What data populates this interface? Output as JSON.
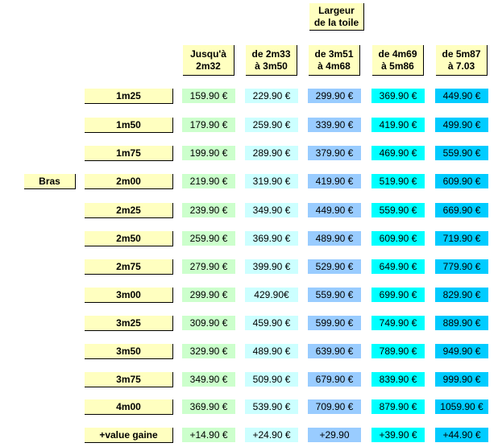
{
  "top_header": "Largeur\nde la toile",
  "columns": [
    {
      "label": "Jusqu'à\n2m32",
      "color": "#ccffcc"
    },
    {
      "label": "de 2m33\nà 3m50",
      "color": "#ccffff"
    },
    {
      "label": "de 3m51\nà 4m68",
      "color": "#99ccff"
    },
    {
      "label": "de 4m69\nà 5m86",
      "color": "#00ffff"
    },
    {
      "label": "de 5m87\nà 7.03",
      "color": "#00ccff"
    }
  ],
  "group_label": "Bras",
  "rows": [
    {
      "label": "1m25",
      "values": [
        "159.90 €",
        "229.90 €",
        "299.90 €",
        "369.90 €",
        "449.90 €"
      ]
    },
    {
      "label": "1m50",
      "values": [
        "179.90 €",
        "259.90 €",
        "339.90 €",
        "419.90 €",
        "499.90 €"
      ]
    },
    {
      "label": "1m75",
      "values": [
        "199.90 €",
        "289.90 €",
        "379.90 €",
        "469.90 €",
        "559.90 €"
      ]
    },
    {
      "label": "2m00",
      "values": [
        "219.90 €",
        "319.90 €",
        "419.90 €",
        "519.90 €",
        "609.90 €"
      ]
    },
    {
      "label": "2m25",
      "values": [
        "239.90 €",
        "349.90 €",
        "449.90 €",
        "559.90 €",
        "669.90 €"
      ]
    },
    {
      "label": "2m50",
      "values": [
        "259.90 €",
        "369.90 €",
        "489.90 €",
        "609.90 €",
        "719.90 €"
      ]
    },
    {
      "label": "2m75",
      "values": [
        "279.90 €",
        "399.90 €",
        "529.90 €",
        "649.90 €",
        "779.90 €"
      ]
    },
    {
      "label": "3m00",
      "values": [
        "299.90 €",
        "429.90€",
        "559.90 €",
        "699.90 €",
        "829.90 €"
      ]
    },
    {
      "label": "3m25",
      "values": [
        "309.90 €",
        "459.90 €",
        "599.90 €",
        "749.90 €",
        "889.90 €"
      ]
    },
    {
      "label": "3m50",
      "values": [
        "329.90 €",
        "489.90 €",
        "639.90 €",
        "789.90 €",
        "949.90 €"
      ]
    },
    {
      "label": "3m75",
      "values": [
        "349.90 €",
        "509.90 €",
        "679.90 €",
        "839.90 €",
        "999.90 €"
      ]
    },
    {
      "label": "4m00",
      "values": [
        "369.90 €",
        "539.90 €",
        "709.90 €",
        "879.90 €",
        "1059.90 €"
      ]
    },
    {
      "label": "+value gaine",
      "values": [
        "+14.90 €",
        "+24.90 €",
        "+29.90",
        "+39.90 €",
        "+44.90 €"
      ]
    }
  ]
}
